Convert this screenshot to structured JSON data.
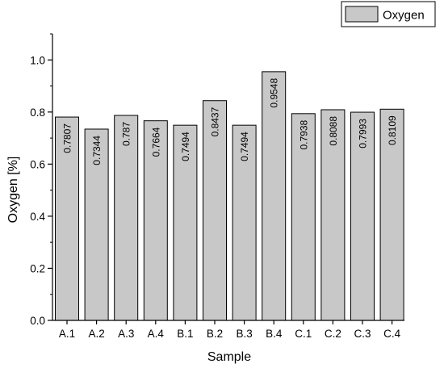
{
  "chart_data": {
    "type": "bar",
    "title": "",
    "xlabel": "Sample",
    "ylabel": "Oxygen [%]",
    "ylim": [
      0,
      1.1
    ],
    "yticks": [
      "0.0",
      "0.2",
      "0.4",
      "0.6",
      "0.8",
      "1.0"
    ],
    "categories": [
      "A.1",
      "A.2",
      "A.3",
      "A.4",
      "B.1",
      "B.2",
      "B.3",
      "B.4",
      "C.1",
      "C.2",
      "C.3",
      "C.4"
    ],
    "series": [
      {
        "name": "Oxygen",
        "values": [
          0.7807,
          0.7344,
          0.787,
          0.7664,
          0.7494,
          0.8437,
          0.7494,
          0.9548,
          0.7938,
          0.8088,
          0.7993,
          0.8109
        ],
        "labels": [
          "0.7807",
          "0.7344",
          "0.787",
          "0.7664",
          "0.7494",
          "0.8437",
          "0.7494",
          "0.9548",
          "0.7938",
          "0.8088",
          "0.7993",
          "0.8109"
        ]
      }
    ],
    "legend_position": "top-right",
    "grid": false,
    "colors": {
      "bar_fill": "#c8c8c8",
      "bar_stroke": "#000000"
    }
  }
}
